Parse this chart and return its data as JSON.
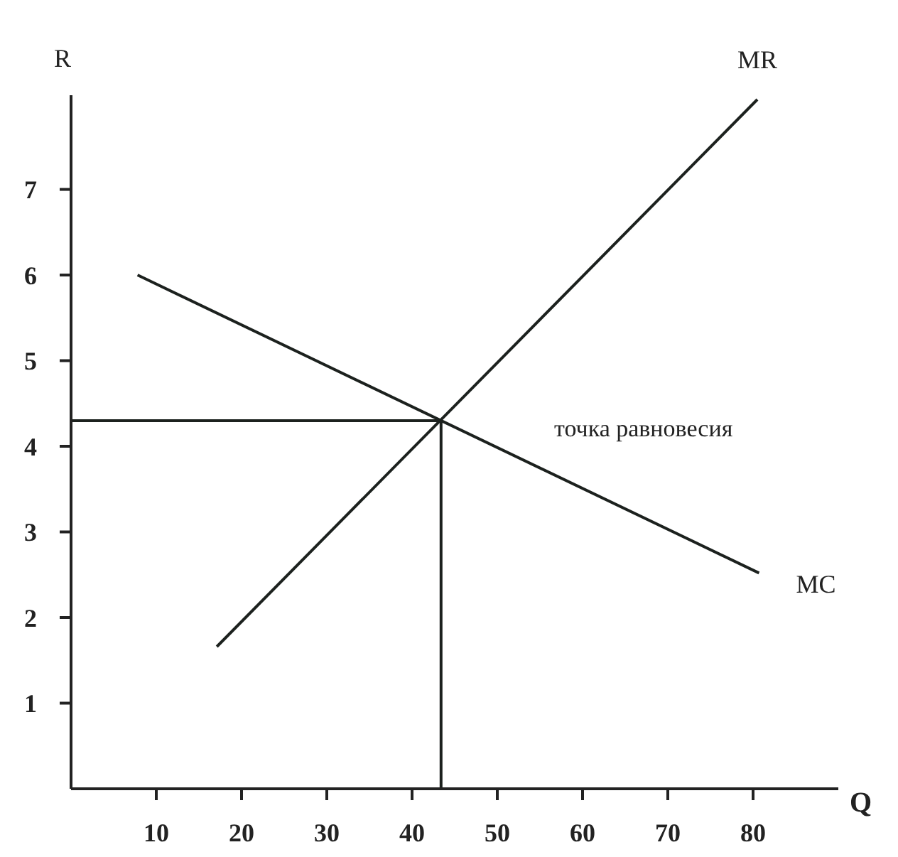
{
  "chart_data": {
    "type": "line",
    "xlabel": "Q",
    "ylabel": "R",
    "xlim": [
      0,
      90
    ],
    "ylim": [
      0,
      8.1
    ],
    "xticks": [
      10,
      20,
      30,
      40,
      50,
      60,
      70,
      80
    ],
    "yticks": [
      1,
      2,
      3,
      4,
      5,
      6,
      7
    ],
    "grid": false,
    "legend": false,
    "marker": "none",
    "line_style": "solid",
    "series": [
      {
        "name": "MR",
        "color": "#1c211e",
        "x": [
          17.1,
          80.5
        ],
        "values": [
          1.66,
          8.05
        ]
      },
      {
        "name": "MC",
        "color": "#1c211e",
        "x": [
          7.8,
          80.7
        ],
        "values": [
          6.0,
          2.52
        ]
      },
      {
        "color": "#1c211e",
        "x": [
          0,
          43.4
        ],
        "values": [
          4.3,
          4.3
        ]
      },
      {
        "color": "#1c211e",
        "x": [
          43.4,
          43.4
        ],
        "values": [
          0,
          4.3
        ]
      }
    ],
    "annotations": [
      "точка равновесия"
    ]
  }
}
